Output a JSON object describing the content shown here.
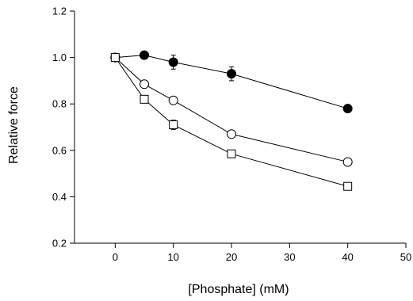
{
  "chart_data": {
    "type": "line",
    "title": "",
    "xlabel": "[Phosphate] (mM)",
    "ylabel": "Relative force",
    "xlim": [
      -7,
      50
    ],
    "ylim": [
      0.2,
      1.2
    ],
    "xticks": [
      0,
      10,
      20,
      30,
      40,
      50
    ],
    "yticks": [
      0.2,
      0.4,
      0.6,
      0.8,
      1.0,
      1.2
    ],
    "xtick_labels": [
      "0",
      "10",
      "20",
      "30",
      "40",
      "50"
    ],
    "ytick_labels": [
      "0.2",
      "0.4",
      "0.6",
      "0.8",
      "1.0",
      "1.2"
    ],
    "grid": false,
    "legend": false,
    "series": [
      {
        "marker": "filled-circle",
        "color": "#000000",
        "x": [
          0,
          5,
          10,
          20,
          40
        ],
        "y": [
          1.0,
          1.01,
          0.98,
          0.93,
          0.78
        ],
        "error": [
          0.0,
          0.0,
          0.03,
          0.03,
          0.0
        ]
      },
      {
        "marker": "open-circle",
        "color": "#000000",
        "x": [
          0,
          5,
          10,
          20,
          40
        ],
        "y": [
          1.0,
          0.885,
          0.815,
          0.67,
          0.55
        ],
        "error": [
          0.0,
          0.0,
          0.0,
          0.0,
          0.0
        ]
      },
      {
        "marker": "open-square",
        "color": "#000000",
        "x": [
          0,
          5,
          10,
          20,
          40
        ],
        "y": [
          1.0,
          0.82,
          0.71,
          0.585,
          0.445
        ],
        "error": [
          0.0,
          0.0,
          0.02,
          0.0,
          0.0
        ]
      }
    ]
  }
}
